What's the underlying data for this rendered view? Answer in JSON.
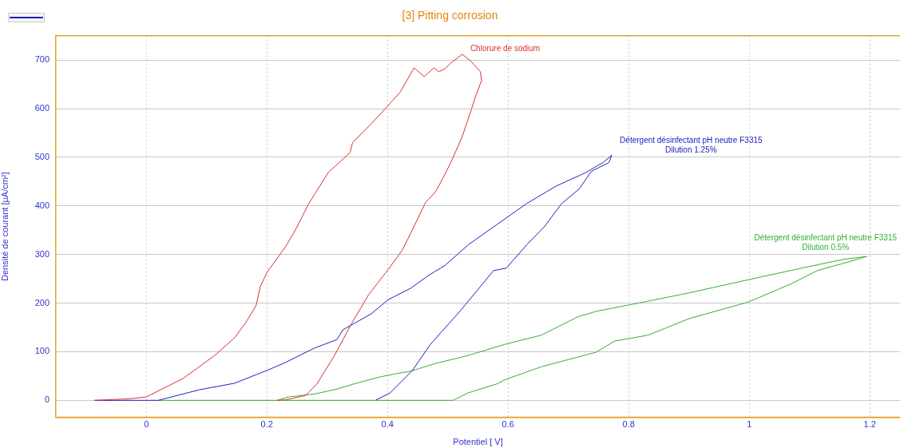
{
  "chart_data": {
    "type": "line",
    "title": "[3] Pitting corrosion",
    "xlabel": "Potentiel [ V]",
    "ylabel": "Densité de courant [µA/cm²]",
    "xlim": [
      -0.15,
      1.25
    ],
    "xticks": [
      0,
      0.2,
      0.4,
      0.6,
      0.8,
      1,
      1.2
    ],
    "ylim": [
      -35,
      750
    ],
    "yticks": [
      0,
      100,
      200,
      300,
      400,
      500,
      600,
      700
    ],
    "grid": true,
    "legend": false,
    "marker": "none",
    "line_style": "solid",
    "series": [
      {
        "name": "Chlorure de sodium",
        "color": "#d93030",
        "x": [
          -0.086,
          -0.029,
          0,
          0.061,
          0.113,
          0.146,
          0.165,
          0.182,
          0.189,
          0.2,
          0.231,
          0.25,
          0.269,
          0.302,
          0.338,
          0.342,
          0.373,
          0.397,
          0.421,
          0.444,
          0.461,
          0.477,
          0.485,
          0.495,
          0.505,
          0.524,
          0.539,
          0.554,
          0.556,
          0.546,
          0.539,
          0.524,
          0.505,
          0.485,
          0.479,
          0.463,
          0.439,
          0.425,
          0.401,
          0.368,
          0.34,
          0.312,
          0.283,
          0.264,
          0.231,
          0.217
        ],
        "values": [
          0,
          3,
          7,
          45,
          92,
          128,
          160,
          195,
          234,
          263,
          316,
          357,
          404,
          469,
          510,
          530,
          569,
          601,
          634,
          684,
          666,
          684,
          676,
          682,
          694,
          712,
          697,
          676,
          658,
          625,
          598,
          543,
          489,
          441,
          428,
          407,
          345,
          310,
          269,
          216,
          157,
          92,
          34,
          10,
          1,
          0
        ]
      },
      {
        "name": "Détergent désinfectant pH neutre F3315\nDilution 1.25%",
        "color": "#2020c0",
        "x": [
          -0.086,
          0.02,
          0.089,
          0.146,
          0.203,
          0.231,
          0.278,
          0.316,
          0.326,
          0.373,
          0.401,
          0.439,
          0.468,
          0.496,
          0.534,
          0.583,
          0.631,
          0.68,
          0.728,
          0.757,
          0.772,
          0.767,
          0.738,
          0.718,
          0.689,
          0.66,
          0.631,
          0.597,
          0.576,
          0.52,
          0.471,
          0.441,
          0.404,
          0.38
        ],
        "values": [
          0,
          0,
          22,
          35,
          63,
          78,
          107,
          125,
          145,
          178,
          207,
          231,
          257,
          278,
          320,
          363,
          405,
          441,
          468,
          489,
          504,
          489,
          471,
          435,
          405,
          357,
          320,
          272,
          267,
          183,
          115,
          61,
          15,
          0
        ]
      },
      {
        "name": "Détergent désinfectant pH neutre F3315\nDilution 0.5%",
        "color": "#33b033",
        "x": [
          0.217,
          0.236,
          0.279,
          0.316,
          0.345,
          0.387,
          0.411,
          0.439,
          0.477,
          0.533,
          0.594,
          0.655,
          0.716,
          0.746,
          0.808,
          0.9,
          0.998,
          1.083,
          1.156,
          1.195,
          1.168,
          1.113,
          1.07,
          0.998,
          0.9,
          0.832,
          0.777,
          0.746,
          0.655,
          0.594,
          0.582,
          0.533,
          0.509,
          0.02
        ],
        "values": [
          0,
          7,
          13,
          23,
          34,
          48,
          54,
          60,
          75,
          92,
          115,
          134,
          172,
          183,
          198,
          221,
          248,
          271,
          290,
          296,
          286,
          267,
          240,
          202,
          168,
          134,
          122,
          99,
          69,
          42,
          34,
          15,
          0,
          0
        ]
      }
    ]
  }
}
